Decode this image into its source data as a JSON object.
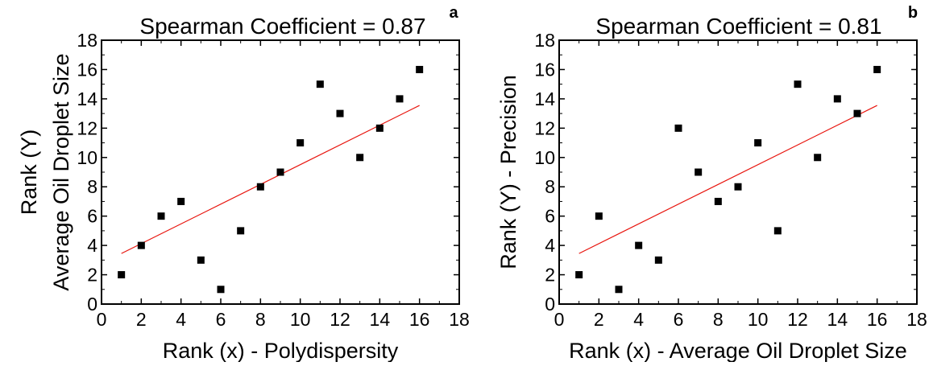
{
  "chart_data": [
    {
      "type": "scatter",
      "panel_label": "a",
      "title": "Spearman Coefficient = 0.87",
      "xlabel": "Rank (x) - Polydispersity",
      "ylabel_lines": [
        "Rank (Y)",
        "Average Oil Droplet Size"
      ],
      "xlim": [
        0,
        18
      ],
      "ylim": [
        0,
        18
      ],
      "x_ticks": [
        "0",
        "2",
        "4",
        "6",
        "8",
        "10",
        "12",
        "14",
        "16",
        "18"
      ],
      "y_ticks": [
        "0",
        "2",
        "4",
        "6",
        "8",
        "10",
        "12",
        "14",
        "16",
        "18"
      ],
      "grid": false,
      "points": [
        {
          "x": 1,
          "y": 2
        },
        {
          "x": 2,
          "y": 4
        },
        {
          "x": 3,
          "y": 6
        },
        {
          "x": 4,
          "y": 7
        },
        {
          "x": 5,
          "y": 3
        },
        {
          "x": 6,
          "y": 1
        },
        {
          "x": 7,
          "y": 5
        },
        {
          "x": 8,
          "y": 8
        },
        {
          "x": 9,
          "y": 9
        },
        {
          "x": 10,
          "y": 11
        },
        {
          "x": 11,
          "y": 15
        },
        {
          "x": 12,
          "y": 13
        },
        {
          "x": 13,
          "y": 10
        },
        {
          "x": 14,
          "y": 12
        },
        {
          "x": 15,
          "y": 14
        },
        {
          "x": 16,
          "y": 16
        }
      ],
      "fit_line": {
        "x": [
          1,
          16
        ],
        "y": [
          3.45,
          13.55
        ],
        "color": "#e8150e"
      },
      "marker_color": "#000000"
    },
    {
      "type": "scatter",
      "panel_label": "b",
      "title": "Spearman Coefficient = 0.81",
      "xlabel": "Rank (x) - Average Oil Droplet Size",
      "ylabel_lines": [
        "Rank (Y) - Precision"
      ],
      "xlim": [
        0,
        18
      ],
      "ylim": [
        0,
        18
      ],
      "x_ticks": [
        "0",
        "2",
        "4",
        "6",
        "8",
        "10",
        "12",
        "14",
        "16",
        "18"
      ],
      "y_ticks": [
        "0",
        "2",
        "4",
        "6",
        "8",
        "10",
        "12",
        "14",
        "16",
        "18"
      ],
      "grid": false,
      "points": [
        {
          "x": 1,
          "y": 2
        },
        {
          "x": 2,
          "y": 6
        },
        {
          "x": 3,
          "y": 1
        },
        {
          "x": 4,
          "y": 4
        },
        {
          "x": 5,
          "y": 3
        },
        {
          "x": 6,
          "y": 12
        },
        {
          "x": 7,
          "y": 9
        },
        {
          "x": 8,
          "y": 7
        },
        {
          "x": 9,
          "y": 8
        },
        {
          "x": 10,
          "y": 11
        },
        {
          "x": 11,
          "y": 5
        },
        {
          "x": 12,
          "y": 15
        },
        {
          "x": 13,
          "y": 10
        },
        {
          "x": 14,
          "y": 14
        },
        {
          "x": 15,
          "y": 13
        },
        {
          "x": 16,
          "y": 16
        }
      ],
      "fit_line": {
        "x": [
          1,
          16
        ],
        "y": [
          3.45,
          13.55
        ],
        "color": "#e8150e"
      },
      "marker_color": "#000000"
    }
  ]
}
